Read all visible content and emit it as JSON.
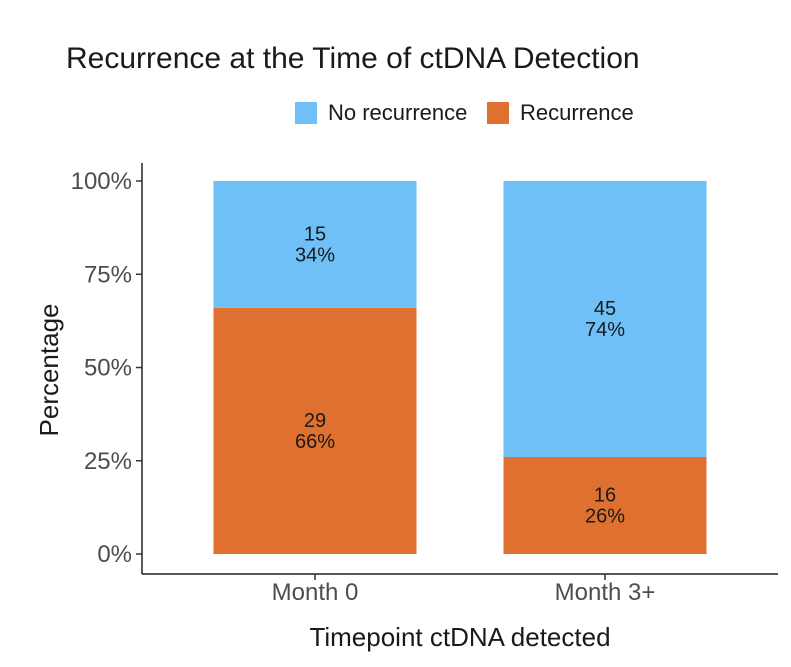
{
  "chart_data": {
    "type": "bar",
    "stacked": true,
    "normalized": true,
    "title": "Recurrence at the Time of ctDNA Detection",
    "xlabel": "Timepoint ctDNA detected",
    "ylabel": "Percentage",
    "categories": [
      "Month 0",
      "Month 3+"
    ],
    "ylim": [
      0,
      100
    ],
    "y_ticks": [
      "0%",
      "25%",
      "50%",
      "75%",
      "100%"
    ],
    "y_tick_values": [
      0,
      25,
      50,
      75,
      100
    ],
    "legend_position": "top",
    "grid": false,
    "series": [
      {
        "name": "Recurrence",
        "color": "#E07030",
        "counts": [
          29,
          16
        ],
        "values": [
          66,
          26
        ],
        "count_labels": [
          "29",
          "16"
        ],
        "percent_labels": [
          "66%",
          "26%"
        ]
      },
      {
        "name": "No recurrence",
        "color": "#6EC0F7",
        "counts": [
          15,
          45
        ],
        "values": [
          34,
          74
        ],
        "count_labels": [
          "15",
          "45"
        ],
        "percent_labels": [
          "34%",
          "74%"
        ]
      }
    ],
    "legend": [
      {
        "label": "No recurrence",
        "color": "#6EC0F7"
      },
      {
        "label": "Recurrence",
        "color": "#E07030"
      }
    ]
  }
}
